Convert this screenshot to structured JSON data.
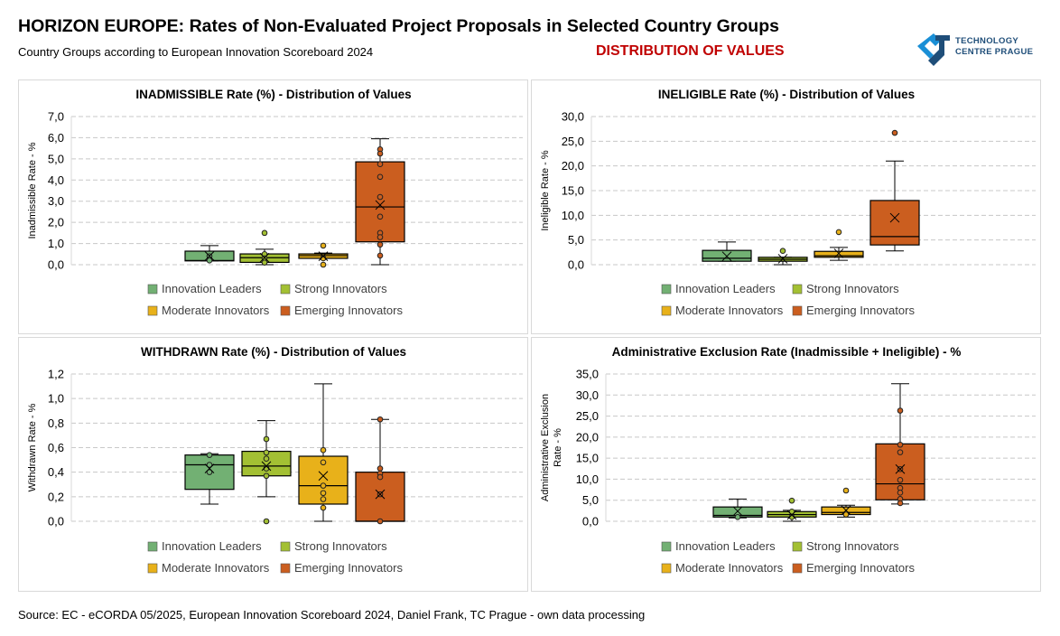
{
  "header": {
    "title": "HORIZON EUROPE: Rates of Non-Evaluated Project Proposals in Selected  Country Groups",
    "subtitle": "Country Groups according to European Innovation Scoreboard 2024",
    "highlight": "DISTRIBUTION OF VALUES",
    "logo_text": [
      "TECHNOLOGY",
      "CENTRE PRAGUE"
    ]
  },
  "source": "Source: EC - eCORDA 05/2025, European Innovation Scoreboard 2024, Daniel Frank, TC Prague - own data processing",
  "colors": {
    "Innovation Leaders": "#72b073",
    "Strong Innovators": "#a3c033",
    "Moderate Innovators": "#e8b11a",
    "Emerging Innovators": "#cb5e1f",
    "title_red": "#c00000",
    "logo_blue": "#1f4e79"
  },
  "chart_data": [
    {
      "type": "boxplot",
      "title": "INADMISSIBLE Rate (%) - Distribution  of Values",
      "ylabel": "Inadmissible  Rate - %",
      "ylim": [
        0,
        7
      ],
      "yticks": [
        "0,0",
        "1,0",
        "2,0",
        "3,0",
        "4,0",
        "5,0",
        "6,0",
        "7,0"
      ],
      "grid": true,
      "legend": "bottom",
      "series": [
        {
          "name": "Innovation Leaders",
          "min": 0.18,
          "q1": 0.18,
          "median": 0.2,
          "q3": 0.64,
          "max": 0.9,
          "mean": 0.41,
          "points": [
            0.4,
            0.2
          ],
          "outliers": []
        },
        {
          "name": "Strong Innovators",
          "min": 0.0,
          "q1": 0.11,
          "median": 0.33,
          "q3": 0.51,
          "max": 0.73,
          "mean": 0.33,
          "points": [
            0.5,
            0.3,
            0.1
          ],
          "outliers": [
            1.5
          ]
        },
        {
          "name": "Moderate Innovators",
          "min": 0.3,
          "q1": 0.3,
          "median": 0.43,
          "q3": 0.51,
          "max": 0.55,
          "mean": 0.4,
          "points": [
            0.3
          ],
          "outliers": [
            0.9,
            0.0
          ]
        },
        {
          "name": "Emerging Innovators",
          "min": 0.0,
          "q1": 1.08,
          "median": 2.73,
          "q3": 4.86,
          "max": 5.95,
          "mean": 2.82,
          "points": [
            5.45,
            5.25,
            4.75,
            4.15,
            3.2,
            2.27,
            1.5,
            1.3,
            0.95,
            0.43
          ],
          "outliers": []
        }
      ]
    },
    {
      "type": "boxplot",
      "title": "INELIGIBLE  Rate (%) - Distribution  of Values",
      "ylabel": "Ineligible Rate - %",
      "ylim": [
        0,
        30
      ],
      "yticks": [
        "0,0",
        "5,0",
        "10,0",
        "15,0",
        "20,0",
        "25,0",
        "30,0"
      ],
      "grid": true,
      "legend": "bottom",
      "series": [
        {
          "name": "Innovation Leaders",
          "min": 0.7,
          "q1": 0.7,
          "median": 1.3,
          "q3": 2.9,
          "max": 4.6,
          "mean": 1.7,
          "points": [],
          "outliers": []
        },
        {
          "name": "Strong Innovators",
          "min": 0.0,
          "q1": 0.7,
          "median": 1.1,
          "q3": 1.5,
          "max": 1.5,
          "mean": 1.2,
          "points": [],
          "outliers": [
            2.8
          ]
        },
        {
          "name": "Moderate Innovators",
          "min": 0.9,
          "q1": 1.5,
          "median": 1.8,
          "q3": 2.7,
          "max": 3.5,
          "mean": 2.3,
          "points": [],
          "outliers": [
            6.6
          ]
        },
        {
          "name": "Emerging Innovators",
          "min": 2.8,
          "q1": 4.0,
          "median": 5.7,
          "q3": 13.0,
          "max": 21.0,
          "mean": 9.5,
          "points": [],
          "outliers": [
            26.7
          ]
        }
      ]
    },
    {
      "type": "boxplot",
      "title": "WITHDRAWN  Rate (%) - Distribution  of Values",
      "ylabel": "Withdrawn  Rate - %",
      "ylim": [
        0,
        1.2
      ],
      "yticks": [
        "0,0",
        "0,2",
        "0,4",
        "0,6",
        "0,8",
        "1,0",
        "1,2"
      ],
      "grid": true,
      "legend": "bottom",
      "series": [
        {
          "name": "Innovation Leaders",
          "min": 0.14,
          "q1": 0.26,
          "median": 0.46,
          "q3": 0.54,
          "max": 0.55,
          "mean": 0.43,
          "points": [
            0.54,
            0.46,
            0.4
          ],
          "outliers": []
        },
        {
          "name": "Strong Innovators",
          "min": 0.2,
          "q1": 0.37,
          "median": 0.45,
          "q3": 0.57,
          "max": 0.82,
          "mean": 0.45,
          "points": [
            0.67,
            0.56,
            0.51,
            0.43,
            0.37
          ],
          "outliers": [
            0.0
          ]
        },
        {
          "name": "Moderate Innovators",
          "min": 0.0,
          "q1": 0.14,
          "median": 0.29,
          "q3": 0.53,
          "max": 1.12,
          "mean": 0.37,
          "points": [
            0.58,
            0.48,
            0.29,
            0.23,
            0.18,
            0.11
          ],
          "outliers": []
        },
        {
          "name": "Emerging Innovators",
          "min": 0.0,
          "q1": 0.0,
          "median": 0.0,
          "q3": 0.4,
          "max": 0.83,
          "mean": 0.22,
          "points": [
            0.83,
            0.43,
            0.39,
            0.36,
            0.22,
            0.0
          ],
          "outliers": []
        }
      ]
    },
    {
      "type": "boxplot",
      "title": "Administrative  Exclusion Rate (Inadmissible + Ineligible)  - %",
      "ylabel": [
        "Administrative  Exclusion",
        "Rate - %"
      ],
      "ylim": [
        0,
        35
      ],
      "yticks": [
        "0,0",
        "5,0",
        "10,0",
        "15,0",
        "20,0",
        "25,0",
        "30,0",
        "35,0"
      ],
      "grid": true,
      "legend": "bottom",
      "series": [
        {
          "name": "Innovation Leaders",
          "min": 0.8,
          "q1": 1.0,
          "median": 1.4,
          "q3": 3.4,
          "max": 5.3,
          "mean": 2.4,
          "points": [
            1.0
          ],
          "outliers": []
        },
        {
          "name": "Strong Innovators",
          "min": 0.0,
          "q1": 1.0,
          "median": 1.6,
          "q3": 2.3,
          "max": 2.6,
          "mean": 1.5,
          "points": [
            2.3,
            1.0
          ],
          "outliers": [
            4.9
          ]
        },
        {
          "name": "Moderate Innovators",
          "min": 1.0,
          "q1": 1.6,
          "median": 2.1,
          "q3": 3.4,
          "max": 3.8,
          "mean": 2.6,
          "points": [
            1.6
          ],
          "outliers": [
            7.3
          ]
        },
        {
          "name": "Emerging Innovators",
          "min": 4.1,
          "q1": 5.1,
          "median": 8.9,
          "q3": 18.4,
          "max": 32.7,
          "mean": 12.4,
          "points": [
            26.3,
            18.2,
            16.4,
            12.4,
            9.8,
            7.9,
            6.8,
            5.3,
            4.3
          ],
          "outliers": []
        }
      ]
    }
  ]
}
